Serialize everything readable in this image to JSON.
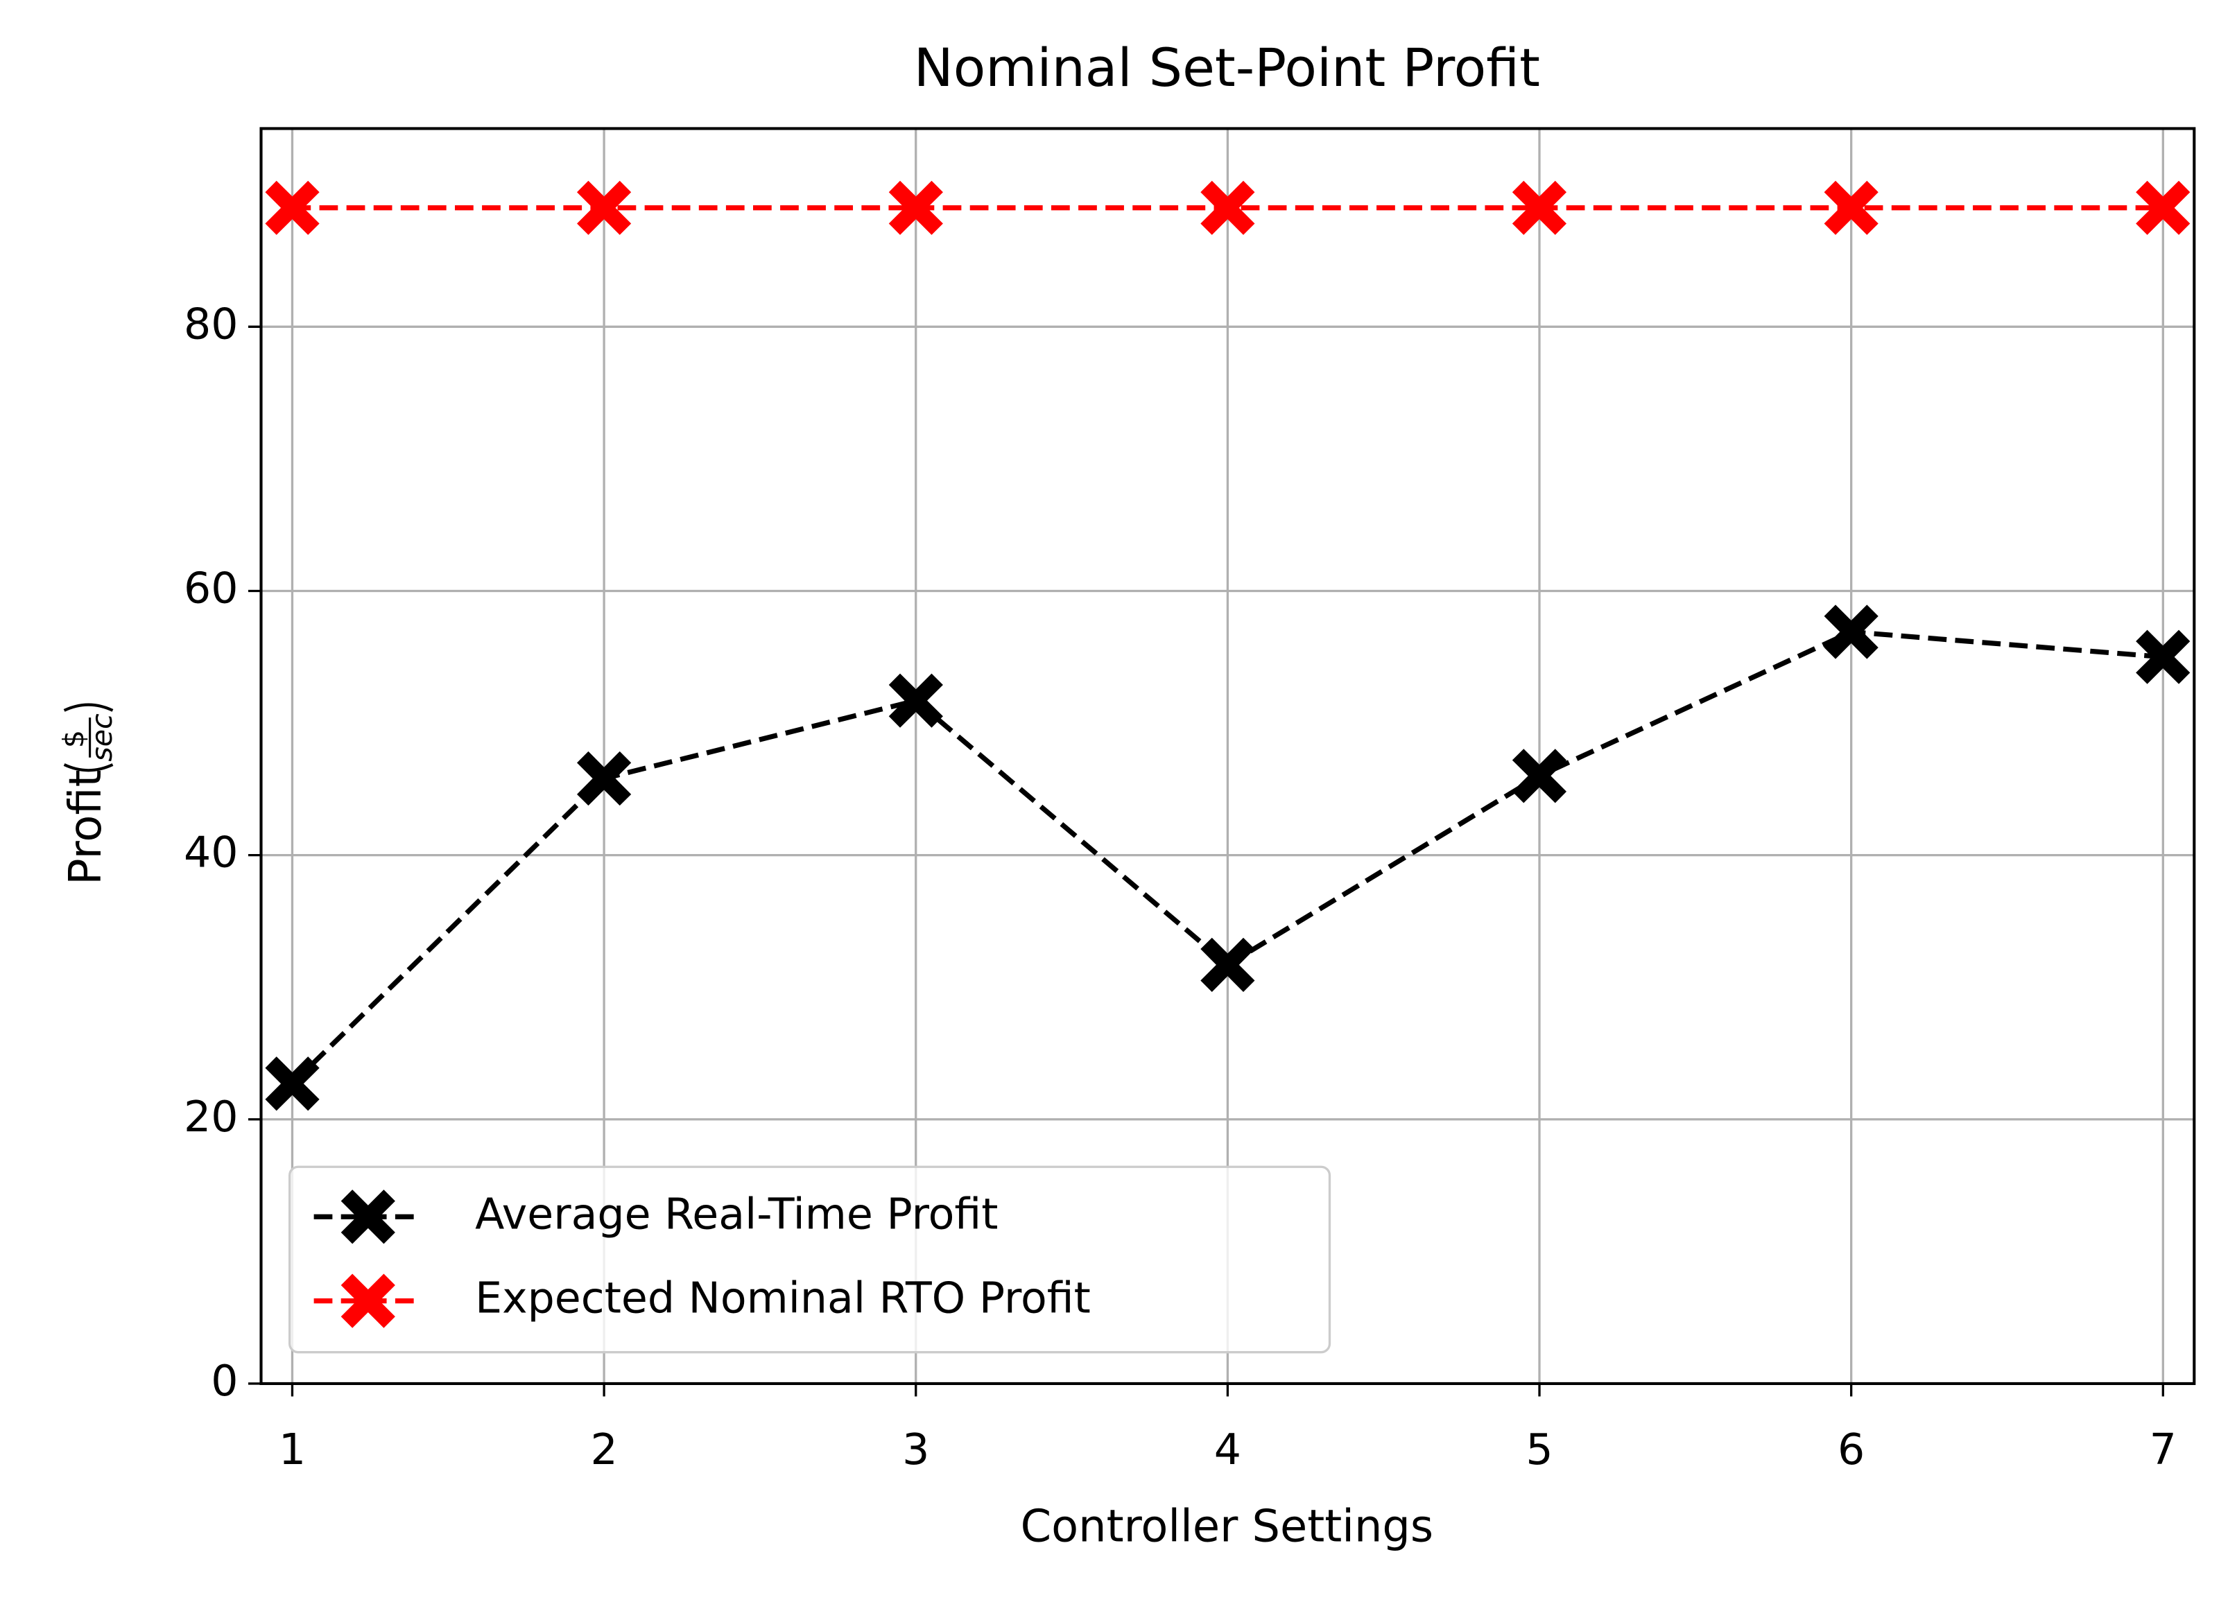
{
  "chart_data": {
    "type": "line",
    "title": "Nominal Set-Point Profit",
    "xlabel": "Controller Settings",
    "ylabel": {
      "text": "Profit",
      "numerator": "$",
      "denominator": "sec"
    },
    "x": [
      1,
      2,
      3,
      4,
      5,
      6,
      7
    ],
    "series": [
      {
        "name": "Average Real-Time Profit",
        "color": "#000000",
        "values": [
          22.7,
          45.8,
          51.7,
          31.7,
          46.0,
          56.9,
          55.0
        ]
      },
      {
        "name": "Expected Nominal RTO Profit",
        "color": "#ff0000",
        "values": [
          89,
          89,
          89,
          89,
          89,
          89,
          89
        ]
      }
    ],
    "xlim": [
      0.9,
      7.1
    ],
    "ylim": [
      0,
      95
    ],
    "xticks": [
      1,
      2,
      3,
      4,
      5,
      6,
      7
    ],
    "yticks": [
      0,
      20,
      40,
      60,
      80
    ],
    "grid": true,
    "legend": "lower left"
  }
}
